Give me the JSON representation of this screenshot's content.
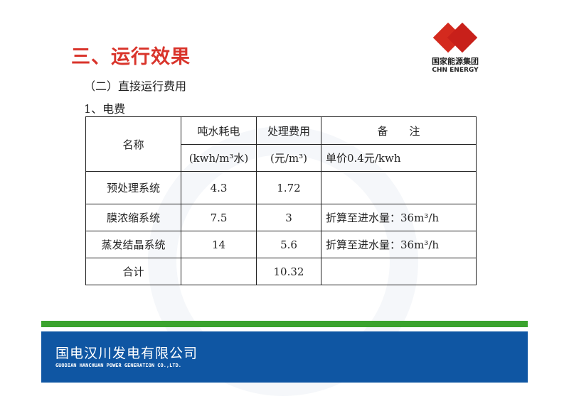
{
  "title": "三、运行效果",
  "subtitle": "（二）直接运行费用",
  "section": "1、电费",
  "logo": {
    "cn": "国家能源集团",
    "en": "CHN ENERGY"
  },
  "table": {
    "headers": {
      "name": "名称",
      "col1": "吨水耗电",
      "col2": "处理费用",
      "col3": "备　　注",
      "col1_unit": "(kwh/m³水)",
      "col2_unit": "(元/m³)",
      "col3_note": "单价0.4元/kwh"
    },
    "rows": [
      {
        "name": "预处理系统",
        "power": "4.3",
        "cost": "1.72",
        "note": ""
      },
      {
        "name": "膜浓缩系统",
        "power": "7.5",
        "cost": "3",
        "note": "折算至进水量：36m³/h"
      },
      {
        "name": "蒸发结晶系统",
        "power": "14",
        "cost": "5.6",
        "note": "折算至进水量：36m³/h"
      },
      {
        "name": "合计",
        "power": "",
        "cost": "10.32",
        "note": ""
      }
    ]
  },
  "footer": {
    "cn": "国电汉川发电有限公司",
    "en": "GUODIAN HANCHUAN POWER GENERATION CO.,LTD."
  },
  "colors": {
    "title": "#d9342b",
    "green": "#3aa32d",
    "blue": "#0f56a3"
  }
}
